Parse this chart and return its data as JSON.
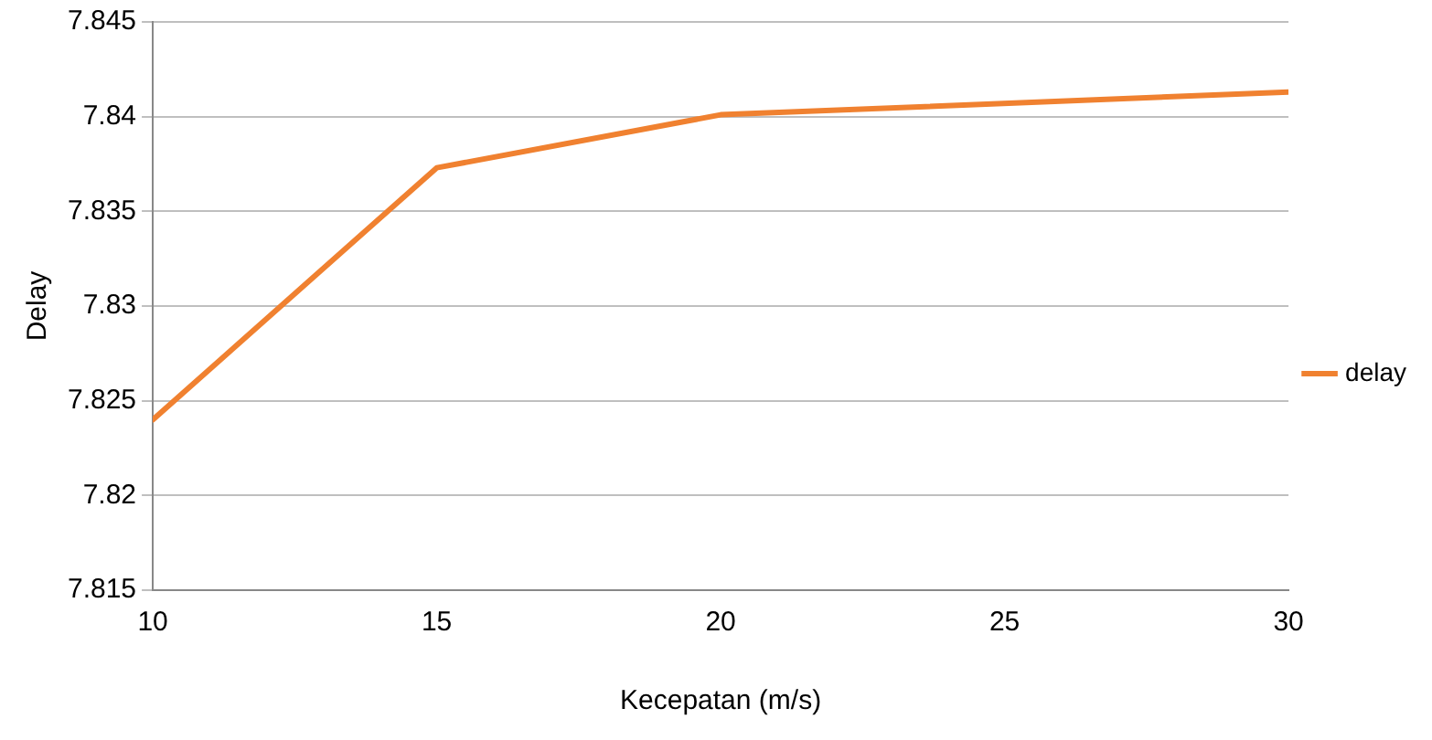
{
  "chart_data": {
    "type": "line",
    "xlabel": "Kecepatan (m/s)",
    "ylabel": "Delay",
    "x": [
      10,
      15,
      20,
      30
    ],
    "series": [
      {
        "name": "delay",
        "color": "#f08130",
        "values": [
          7.824,
          7.8373,
          7.8401,
          7.8413
        ]
      }
    ],
    "xlim": [
      10,
      30
    ],
    "xticks": [
      10,
      15,
      20,
      25,
      30
    ],
    "ylim": [
      7.815,
      7.845
    ],
    "yticks": [
      7.815,
      7.82,
      7.825,
      7.83,
      7.835,
      7.84,
      7.845
    ],
    "grid": "y",
    "legend": "right",
    "marker": "none",
    "line_style": "solid"
  }
}
